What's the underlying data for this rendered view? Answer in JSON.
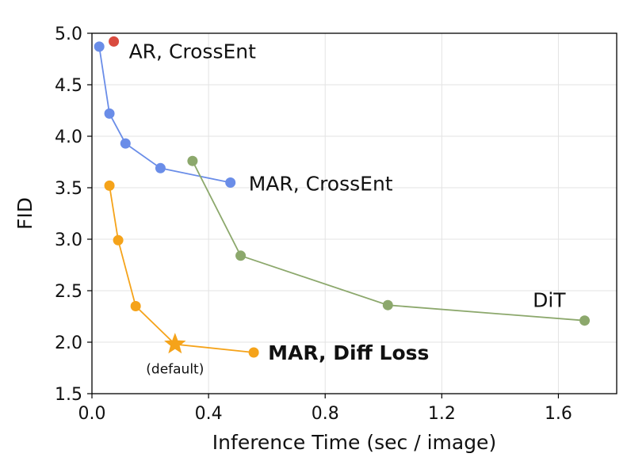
{
  "chart_data": {
    "type": "line",
    "xlabel": "Inference Time (sec / image)",
    "ylabel": "FID",
    "xlim": [
      0.0,
      1.8
    ],
    "ylim": [
      1.5,
      5.0
    ],
    "xticks": [
      0.0,
      0.4,
      0.8,
      1.2,
      1.6
    ],
    "xtick_labels": [
      "0.0",
      "0.4",
      "0.8",
      "1.2",
      "1.6"
    ],
    "yticks": [
      1.5,
      2.0,
      2.5,
      3.0,
      3.5,
      4.0,
      4.5,
      5.0
    ],
    "ytick_labels": [
      "1.5",
      "2.0",
      "2.5",
      "3.0",
      "3.5",
      "4.0",
      "4.5",
      "5.0"
    ],
    "grid": true,
    "series": [
      {
        "name": "AR, CrossEnt",
        "color": "#d94b3f",
        "marker": "circle",
        "x": [
          0.075
        ],
        "y": [
          4.92
        ]
      },
      {
        "name": "MAR, CrossEnt",
        "color": "#6a8de8",
        "marker": "circle",
        "x": [
          0.025,
          0.06,
          0.115,
          0.235,
          0.475
        ],
        "y": [
          4.87,
          4.22,
          3.93,
          3.69,
          3.55
        ]
      },
      {
        "name": "DiT",
        "color": "#8ca86c",
        "marker": "circle",
        "x": [
          0.345,
          0.51,
          1.015,
          1.69
        ],
        "y": [
          3.76,
          2.84,
          2.36,
          2.21
        ]
      },
      {
        "name": "MAR, Diff Loss",
        "color": "#f5a31a",
        "marker": "circle",
        "bold": true,
        "x": [
          0.06,
          0.09,
          0.15,
          0.285,
          0.555
        ],
        "y": [
          3.52,
          2.99,
          2.35,
          1.98,
          1.9
        ],
        "star_index": 3
      }
    ],
    "annotations": [
      {
        "text": "(default)",
        "x": 0.285,
        "y": 1.98
      }
    ]
  }
}
